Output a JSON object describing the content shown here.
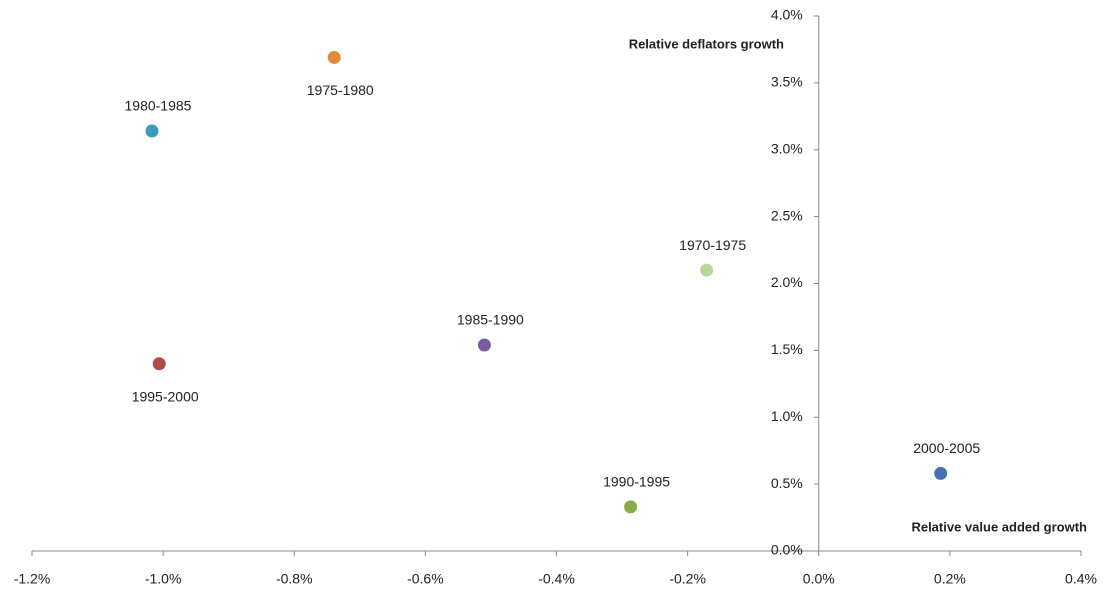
{
  "chart_data": {
    "type": "scatter",
    "x_label": "Relative value added growth",
    "y_label": "Relative deflators growth",
    "xlim": [
      -1.2,
      0.4
    ],
    "ylim": [
      0,
      4.0
    ],
    "xticks": [
      {
        "value": -1.2,
        "label": "-1.2%"
      },
      {
        "value": -1.0,
        "label": "-1.0%"
      },
      {
        "value": -0.8,
        "label": "-0.8%"
      },
      {
        "value": -0.6,
        "label": "-0.6%"
      },
      {
        "value": -0.4,
        "label": "-0.4%"
      },
      {
        "value": -0.2,
        "label": "-0.2%"
      },
      {
        "value": 0,
        "label": "0.0%"
      },
      {
        "value": 0.2,
        "label": "0.2%"
      },
      {
        "value": 0.4,
        "label": "0.4%"
      }
    ],
    "yticks": [
      {
        "value": 0,
        "label": "0.0%"
      },
      {
        "value": 0.5,
        "label": "0.5%"
      },
      {
        "value": 1.0,
        "label": "1.0%"
      },
      {
        "value": 1.5,
        "label": "1.5%"
      },
      {
        "value": 2.0,
        "label": "2.0%"
      },
      {
        "value": 2.5,
        "label": "2.5%"
      },
      {
        "value": 3.0,
        "label": "3.0%"
      },
      {
        "value": 3.5,
        "label": "3.5%"
      },
      {
        "value": 4.0,
        "label": "4.0%"
      }
    ],
    "grid": false,
    "series": [
      {
        "name": "1970-1975",
        "color": "#b9d69b",
        "x": [
          -0.171
        ],
        "values": [
          2.1
        ]
      },
      {
        "name": "1975-1980",
        "color": "#e38b3b",
        "x": [
          -0.739
        ],
        "values": [
          3.69
        ]
      },
      {
        "name": "1980-1985",
        "color": "#3e9bb8",
        "x": [
          -1.017
        ],
        "values": [
          3.14
        ]
      },
      {
        "name": "1985-1990",
        "color": "#7a5aa0",
        "x": [
          -0.51
        ],
        "values": [
          1.54
        ]
      },
      {
        "name": "1990-1995",
        "color": "#8aa94b",
        "x": [
          -0.287
        ],
        "values": [
          0.33
        ]
      },
      {
        "name": "1995-2000",
        "color": "#b24b46",
        "x": [
          -1.006
        ],
        "values": [
          1.4
        ]
      },
      {
        "name": "2000-2005",
        "color": "#4671b2",
        "x": [
          0.186
        ],
        "values": [
          0.58
        ]
      }
    ]
  }
}
